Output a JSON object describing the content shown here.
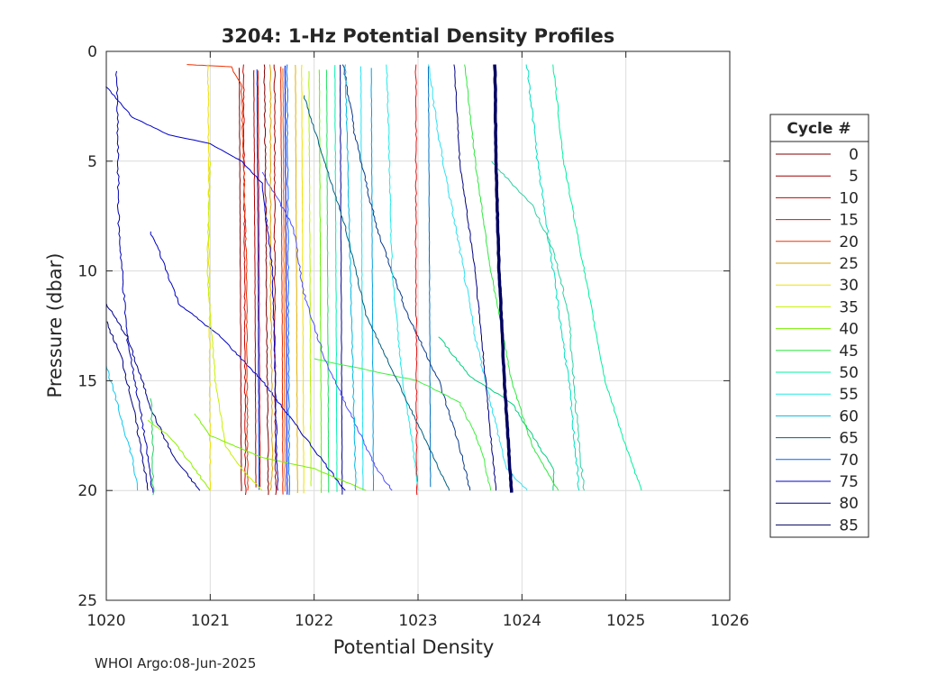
{
  "chart_data": {
    "type": "line",
    "title": "3204: 1-Hz Potential Density Profiles",
    "xlabel": "Potential Density",
    "ylabel": "Pressure (dbar)",
    "xlim": [
      1020,
      1026
    ],
    "ylim": [
      0,
      25
    ],
    "y_reversed": true,
    "xticks": [
      "1020",
      "1021",
      "1022",
      "1023",
      "1024",
      "1025",
      "1026"
    ],
    "yticks": [
      "0",
      "5",
      "10",
      "15",
      "20",
      "25"
    ],
    "grid": true,
    "legend_title": "Cycle #",
    "legend_position": "right",
    "series": [
      {
        "name": "0",
        "color": "#800000",
        "points": [
          [
            1021.52,
            0.6
          ],
          [
            1021.53,
            5
          ],
          [
            1021.54,
            10
          ],
          [
            1021.55,
            15
          ],
          [
            1021.56,
            20.2
          ]
        ]
      },
      {
        "name": "5",
        "color": "#a00000",
        "points": [
          [
            1021.62,
            0.6
          ],
          [
            1021.62,
            10
          ],
          [
            1021.63,
            20.2
          ]
        ]
      },
      {
        "name": "10",
        "color": "#c80000",
        "points": [
          [
            1021.32,
            0.6
          ],
          [
            1021.33,
            10
          ],
          [
            1021.34,
            20.2
          ]
        ]
      },
      {
        "name": "15",
        "color": "#e01010",
        "points": [
          [
            1022.98,
            0.6
          ],
          [
            1022.98,
            10
          ],
          [
            1022.99,
            20.2
          ]
        ]
      },
      {
        "name": "20",
        "color": "#f03000",
        "points": [
          [
            1020.78,
            0.6
          ],
          [
            1021.2,
            0.7
          ],
          [
            1021.3,
            1.5
          ],
          [
            1021.35,
            10
          ],
          [
            1021.36,
            20
          ]
        ]
      },
      {
        "name": "25",
        "color": "#d9a000",
        "points": [
          [
            1021.58,
            0.6
          ],
          [
            1021.58,
            10
          ],
          [
            1021.6,
            19
          ],
          [
            1021.58,
            20
          ]
        ]
      },
      {
        "name": "30",
        "color": "#f0e000",
        "points": [
          [
            1020.98,
            0.6
          ],
          [
            1020.99,
            10
          ],
          [
            1021.0,
            20
          ]
        ]
      },
      {
        "name": "35",
        "color": "#c8f000",
        "points": [
          [
            1021.0,
            5
          ],
          [
            1020.97,
            10
          ],
          [
            1021.05,
            15
          ],
          [
            1021.15,
            18
          ],
          [
            1021.3,
            19
          ],
          [
            1021.5,
            20
          ]
        ]
      },
      {
        "name": "40",
        "color": "#78f000",
        "points": [
          [
            1020.85,
            16.5
          ],
          [
            1021.0,
            17.5
          ],
          [
            1021.5,
            18.5
          ],
          [
            1022.0,
            19
          ],
          [
            1022.5,
            20
          ]
        ]
      },
      {
        "name": "45",
        "color": "#30e840",
        "points": [
          [
            1023.45,
            0.6
          ],
          [
            1023.55,
            5
          ],
          [
            1023.7,
            10
          ],
          [
            1023.9,
            15
          ],
          [
            1024.1,
            18
          ],
          [
            1024.35,
            20
          ]
        ]
      },
      {
        "name": "50",
        "color": "#00f0a0",
        "points": [
          [
            1024.3,
            0.6
          ],
          [
            1024.4,
            5
          ],
          [
            1024.6,
            10
          ],
          [
            1024.8,
            15
          ],
          [
            1025.0,
            18
          ],
          [
            1025.15,
            20
          ]
        ]
      },
      {
        "name": "55",
        "color": "#20e8e8",
        "points": [
          [
            1022.7,
            0.6
          ],
          [
            1022.75,
            10
          ],
          [
            1022.85,
            15
          ],
          [
            1022.95,
            18
          ],
          [
            1023.0,
            20
          ]
        ]
      },
      {
        "name": "60",
        "color": "#00b8e0",
        "points": [
          [
            1022.3,
            0.6
          ],
          [
            1022.35,
            10
          ],
          [
            1022.4,
            20
          ]
        ]
      },
      {
        "name": "65",
        "color": "#006080",
        "points": [
          [
            1021.9,
            2
          ],
          [
            1022.1,
            5
          ],
          [
            1022.3,
            8
          ],
          [
            1022.5,
            12
          ],
          [
            1022.9,
            16
          ],
          [
            1023.3,
            20
          ]
        ]
      },
      {
        "name": "70",
        "color": "#0060ff",
        "points": [
          [
            1021.74,
            0.6
          ],
          [
            1021.75,
            10
          ],
          [
            1021.76,
            20.2
          ]
        ]
      },
      {
        "name": "75",
        "color": "#0000c8",
        "points": [
          [
            1020.0,
            1.6
          ],
          [
            1020.25,
            3
          ],
          [
            1020.6,
            3.8
          ],
          [
            1021.0,
            4.2
          ],
          [
            1021.3,
            5.0
          ],
          [
            1021.5,
            6
          ],
          [
            1021.6,
            10
          ],
          [
            1021.65,
            20
          ]
        ]
      },
      {
        "name": "80",
        "color": "#000080",
        "points": [
          [
            1023.35,
            0.6
          ],
          [
            1023.4,
            5
          ],
          [
            1023.55,
            10
          ],
          [
            1023.65,
            15
          ],
          [
            1023.75,
            20
          ]
        ]
      },
      {
        "name": "85",
        "color": "#000060",
        "points": [
          [
            1023.74,
            0.6
          ],
          [
            1023.75,
            5
          ],
          [
            1023.78,
            10
          ],
          [
            1023.83,
            15
          ],
          [
            1023.9,
            20.1
          ]
        ]
      }
    ]
  },
  "footer_text": "WHOI Argo:08-Jun-2025"
}
